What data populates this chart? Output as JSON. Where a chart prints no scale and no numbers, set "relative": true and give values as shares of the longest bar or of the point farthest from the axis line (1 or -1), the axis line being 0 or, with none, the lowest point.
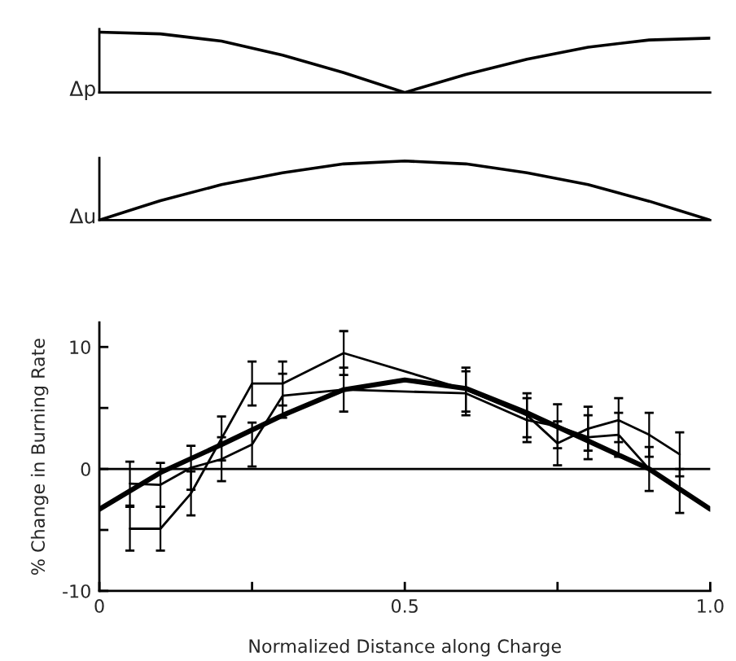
{
  "chart_data": [
    {
      "type": "line",
      "ylabel": "Δp",
      "relative": true,
      "categories": [
        null,
        null,
        null,
        null,
        null,
        null,
        null,
        null,
        null,
        null,
        null
      ],
      "series": [
        {
          "color": "#000000",
          "values": [
            1.0,
            0.97,
            0.85,
            0.62,
            0.33,
            0.0,
            0.3,
            0.55,
            0.75,
            0.87,
            0.9
          ]
        }
      ]
    },
    {
      "type": "line",
      "ylabel": "Δu",
      "relative": true,
      "categories": [
        null,
        null,
        null,
        null,
        null,
        null,
        null,
        null,
        null,
        null,
        null
      ],
      "series": [
        {
          "color": "#000000",
          "values": [
            0.0,
            0.33,
            0.6,
            0.8,
            0.95,
            1.0,
            0.95,
            0.8,
            0.6,
            0.32,
            0.0
          ]
        }
      ]
    },
    {
      "type": "line",
      "xlabel": "Normalized Distance along Charge",
      "ylabel": "% Change in Burning Rate",
      "xlim": [
        0,
        1
      ],
      "xticks": [
        0,
        {
          "value": 0.25,
          "label": null
        },
        0.5,
        {
          "value": 0.75,
          "label": null
        },
        {
          "value": 1,
          "label": "1.0"
        }
      ],
      "ylim": [
        -10,
        12
      ],
      "yticks": [
        -10,
        {
          "value": -5,
          "label": null
        },
        0,
        {
          "value": 5,
          "label": null
        },
        10
      ],
      "ref_lines": [
        {
          "axis": "y",
          "value": 0,
          "color": "#000000"
        }
      ],
      "series": [
        {
          "color": "#000000",
          "x": [
            0.05,
            0.1,
            0.15,
            0.2,
            0.25,
            0.3,
            0.4,
            0.6,
            0.7,
            0.75,
            0.8,
            0.85,
            0.9,
            0.95
          ],
          "values": [
            -4.9,
            -4.9,
            -2.0,
            2.5,
            7.0,
            7.0,
            9.5,
            6.5,
            4.4,
            2.1,
            3.3,
            4.0,
            2.8,
            1.2
          ],
          "errors": [
            1.8,
            1.8,
            1.8,
            1.8,
            1.8,
            1.8,
            1.8,
            1.8,
            1.8,
            1.8,
            1.8,
            1.8,
            1.8,
            1.8
          ]
        },
        {
          "color": "#000000",
          "x": [
            0.05,
            0.1,
            0.15,
            0.2,
            0.25,
            0.3,
            0.4,
            0.6,
            0.7,
            0.75,
            0.8,
            0.85,
            0.9,
            0.95
          ],
          "values": [
            -1.2,
            -1.3,
            0.1,
            0.8,
            2.0,
            6.0,
            6.5,
            6.2,
            4.0,
            3.5,
            2.6,
            2.8,
            0.0,
            -1.8
          ],
          "errors": [
            1.8,
            1.8,
            1.8,
            1.8,
            1.8,
            1.8,
            1.8,
            1.8,
            1.8,
            1.8,
            1.8,
            1.8,
            1.8,
            1.8
          ]
        },
        {
          "color": "#000000",
          "x": [
            0,
            0.1,
            0.2,
            0.3,
            0.4,
            0.5,
            0.6,
            0.7,
            0.8,
            0.9,
            1.0
          ],
          "values": [
            -3.3,
            -0.3,
            2.0,
            4.4,
            6.5,
            7.3,
            6.6,
            4.6,
            2.3,
            0.0,
            -3.3
          ]
        }
      ]
    }
  ]
}
